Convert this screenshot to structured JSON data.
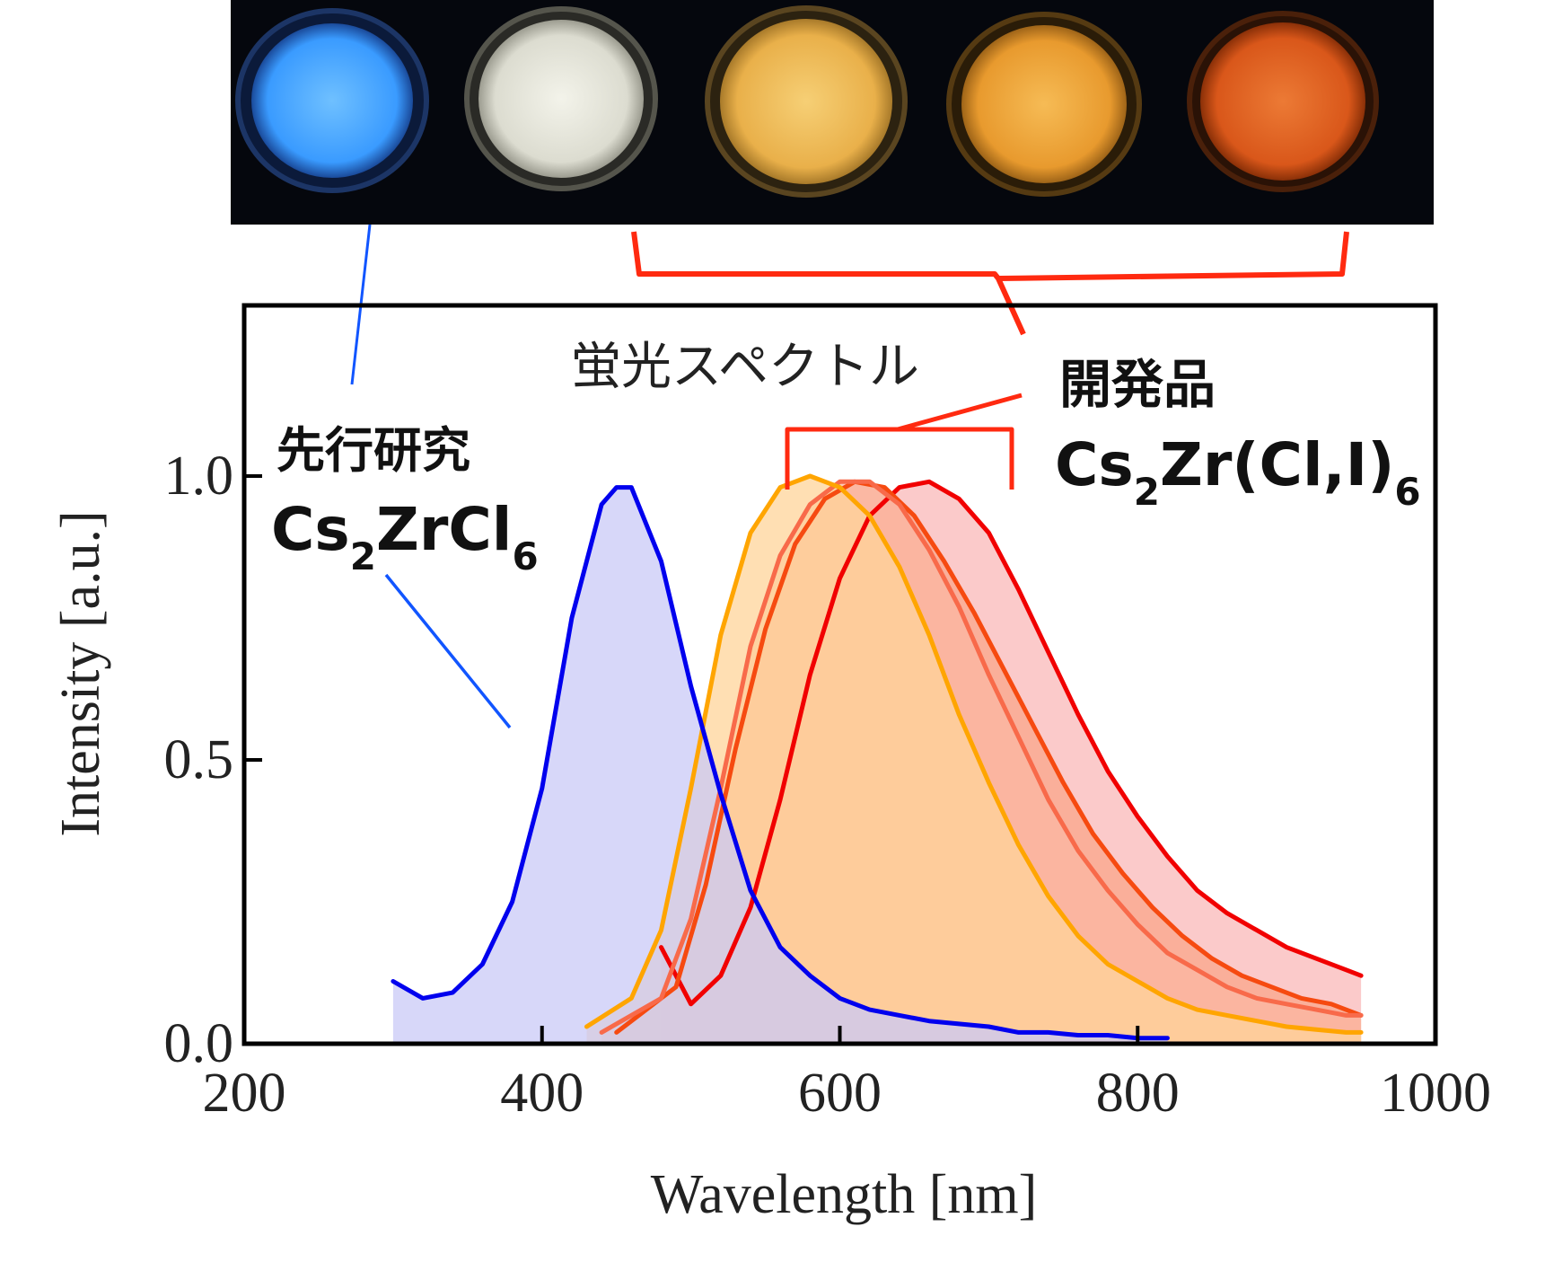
{
  "chart_data": {
    "type": "area",
    "title": "蛍光スペクトル",
    "xlabel": "Wavelength [nm]",
    "ylabel": "Intensity [a.u.]",
    "xlim": [
      200,
      1000
    ],
    "ylim": [
      0,
      1.3
    ],
    "xticks": [
      200,
      400,
      600,
      800,
      1000
    ],
    "xtick_labels": [
      "200",
      "400",
      "600",
      "800",
      "1000"
    ],
    "yticks": [
      0,
      0.5,
      1.0
    ],
    "ytick_labels": [
      "0.0",
      "0.5",
      "1.0"
    ],
    "grid": false,
    "series": [
      {
        "group": "prior",
        "color": "#0000ee",
        "fill": "#c9c9f7",
        "x": [
          300,
          320,
          340,
          360,
          380,
          400,
          420,
          440,
          450,
          460,
          480,
          500,
          520,
          540,
          560,
          580,
          600,
          620,
          640,
          660,
          680,
          700,
          720,
          740,
          760,
          780,
          800,
          820
        ],
        "y": [
          0.11,
          0.08,
          0.09,
          0.14,
          0.25,
          0.45,
          0.75,
          0.95,
          0.98,
          0.98,
          0.85,
          0.63,
          0.44,
          0.27,
          0.17,
          0.12,
          0.08,
          0.06,
          0.05,
          0.04,
          0.035,
          0.03,
          0.02,
          0.02,
          0.015,
          0.015,
          0.01,
          0.01
        ]
      },
      {
        "group": "developed",
        "color": "#ffa500",
        "fill": "#ffd49a",
        "x": [
          430,
          460,
          480,
          500,
          520,
          540,
          560,
          580,
          600,
          620,
          640,
          660,
          680,
          700,
          720,
          740,
          760,
          780,
          800,
          820,
          840,
          860,
          880,
          900,
          920,
          940,
          950
        ],
        "y": [
          0.03,
          0.08,
          0.2,
          0.45,
          0.72,
          0.9,
          0.98,
          1.0,
          0.98,
          0.93,
          0.84,
          0.72,
          0.58,
          0.46,
          0.35,
          0.26,
          0.19,
          0.14,
          0.11,
          0.08,
          0.06,
          0.05,
          0.04,
          0.03,
          0.025,
          0.02,
          0.02
        ]
      },
      {
        "group": "developed",
        "color": "#f86a4a",
        "fill": "#fbb7a2",
        "x": [
          440,
          480,
          500,
          520,
          540,
          560,
          580,
          600,
          620,
          640,
          660,
          680,
          700,
          720,
          740,
          760,
          780,
          800,
          820,
          840,
          860,
          880,
          900,
          920,
          940,
          950
        ],
        "y": [
          0.02,
          0.08,
          0.22,
          0.45,
          0.7,
          0.86,
          0.95,
          0.99,
          0.99,
          0.95,
          0.87,
          0.77,
          0.65,
          0.54,
          0.43,
          0.34,
          0.27,
          0.21,
          0.16,
          0.13,
          0.1,
          0.08,
          0.07,
          0.06,
          0.05,
          0.05
        ]
      },
      {
        "group": "developed",
        "color": "#f64a10",
        "fill": "#f9a58a",
        "x": [
          450,
          490,
          510,
          530,
          550,
          570,
          590,
          610,
          630,
          650,
          670,
          690,
          710,
          730,
          750,
          770,
          790,
          810,
          830,
          850,
          870,
          890,
          910,
          930,
          950
        ],
        "y": [
          0.02,
          0.1,
          0.28,
          0.52,
          0.73,
          0.88,
          0.96,
          0.99,
          0.98,
          0.93,
          0.85,
          0.76,
          0.66,
          0.56,
          0.46,
          0.37,
          0.3,
          0.24,
          0.19,
          0.15,
          0.12,
          0.1,
          0.08,
          0.07,
          0.05
        ]
      },
      {
        "group": "developed",
        "color": "#f10000",
        "fill": "#f9b8b8",
        "x": [
          480,
          500,
          520,
          540,
          560,
          580,
          600,
          620,
          640,
          660,
          680,
          700,
          720,
          740,
          760,
          780,
          800,
          820,
          840,
          860,
          880,
          900,
          920,
          940,
          950
        ],
        "y": [
          0.17,
          0.07,
          0.12,
          0.24,
          0.43,
          0.65,
          0.82,
          0.93,
          0.98,
          0.99,
          0.96,
          0.9,
          0.8,
          0.69,
          0.58,
          0.48,
          0.4,
          0.33,
          0.27,
          0.23,
          0.2,
          0.17,
          0.15,
          0.13,
          0.12
        ]
      }
    ]
  },
  "annotations": {
    "prior_study": {
      "heading": "先行研究",
      "formula_main": "Cs",
      "formula_sub1": "2",
      "formula_mid": "ZrCl",
      "formula_sub2": "6",
      "line_color": "#1155ff"
    },
    "developed": {
      "heading": "開発品",
      "formula_main": "Cs",
      "formula_sub1": "2",
      "formula_mid": "Zr(Cl,I)",
      "formula_sub2": "6",
      "bracket_color": "#ff2a10"
    }
  },
  "photo": {
    "description_colors": [
      "#49a6ff",
      "#e8e8dc",
      "#f0bd55",
      "#f2a83b",
      "#e46420"
    ],
    "background": "#05070d"
  }
}
